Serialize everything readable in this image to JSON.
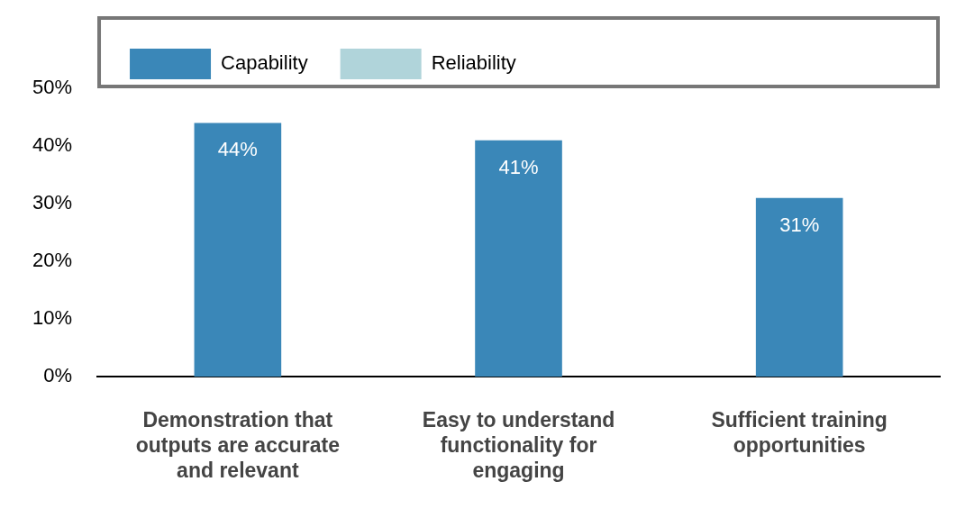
{
  "chart_data": {
    "type": "bar",
    "categories": [
      "Demonstration that outputs are accurate and relevant",
      "Easy to understand functionality for engaging",
      "Sufficient training opportunities"
    ],
    "series": [
      {
        "name": "Capability",
        "color": "#3a87b8",
        "values": [
          44,
          41,
          31
        ],
        "value_labels": [
          "44%",
          "41%",
          "31%"
        ]
      },
      {
        "name": "Reliability",
        "color": "#b0d4da",
        "values": [
          null,
          null,
          null
        ]
      }
    ],
    "ylim": [
      0,
      50
    ],
    "yticks": [
      {
        "value": 0,
        "label": "0%"
      },
      {
        "value": 10,
        "label": "10%"
      },
      {
        "value": 20,
        "label": "20%"
      },
      {
        "value": 30,
        "label": "30%"
      },
      {
        "value": 40,
        "label": "40%"
      },
      {
        "value": 50,
        "label": "50%"
      }
    ],
    "grid": false,
    "legend": "top left"
  }
}
